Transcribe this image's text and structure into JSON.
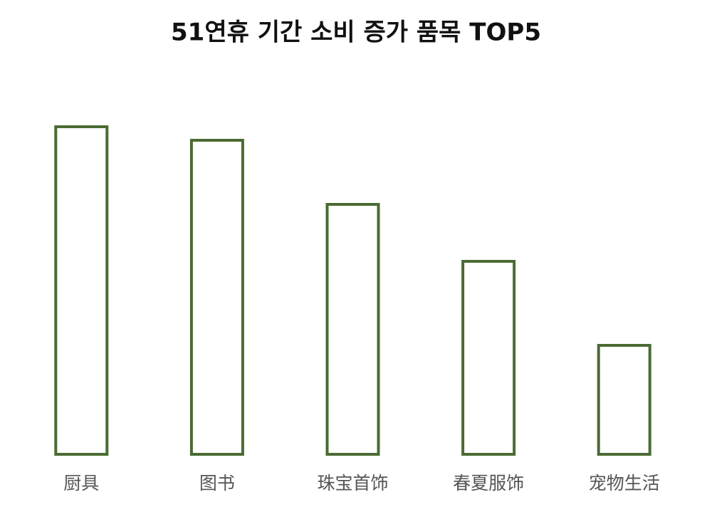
{
  "chart_data": {
    "type": "bar",
    "title": "51연휴 기간 소비 증가 품목 TOP5",
    "categories": [
      "厨具",
      "图书",
      "珠宝首饰",
      "春夏服饰",
      "宠物生活"
    ],
    "values": [
      460,
      441,
      351,
      271,
      153
    ],
    "color": "#4a6b32",
    "ylim": [
      0,
      500
    ]
  }
}
